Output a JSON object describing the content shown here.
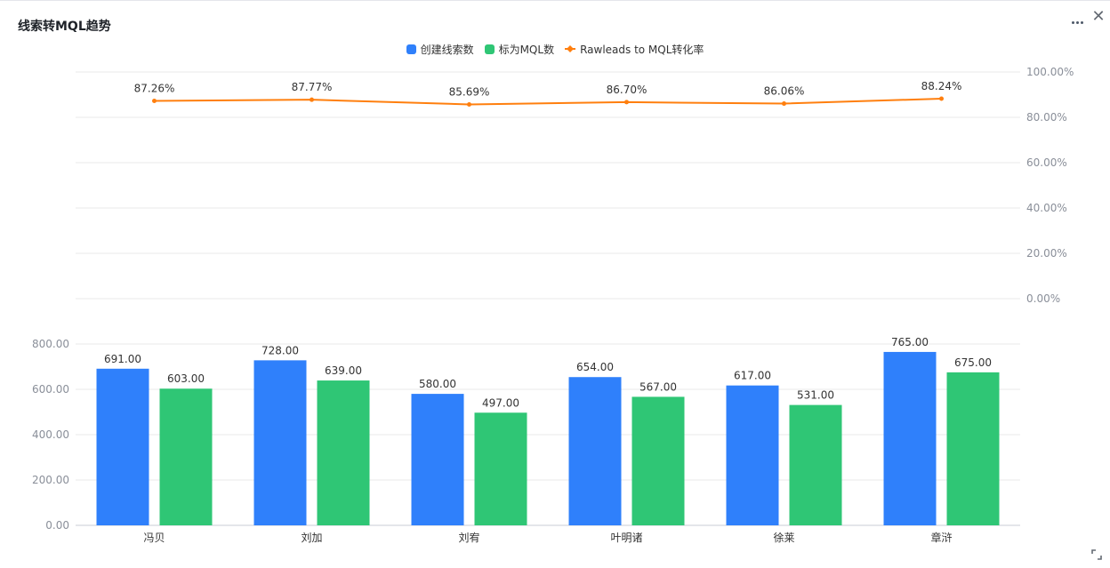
{
  "header": {
    "title": "线索转MQL趋势",
    "menu_icon": "more-dots-icon",
    "close_icon": "close-icon",
    "expand_icon": "expand-corner-icon"
  },
  "legend": [
    {
      "label": "创建线索数",
      "color": "#2f80fb",
      "shape": "square"
    },
    {
      "label": "标为MQL数",
      "color": "#2fc675",
      "shape": "square"
    },
    {
      "label": "Rawleads to MQL转化率",
      "color": "#ff7f0e",
      "shape": "line"
    }
  ],
  "chart_data": {
    "type": "bar",
    "categories": [
      "冯贝",
      "刘加",
      "刘宥",
      "叶明诸",
      "徐莱",
      "章浒"
    ],
    "series": [
      {
        "name": "创建线索数",
        "type": "bar",
        "color": "#2f80fb",
        "values": [
          691.0,
          728.0,
          580.0,
          654.0,
          617.0,
          765.0
        ],
        "labels": [
          "691.00",
          "728.00",
          "580.00",
          "654.00",
          "617.00",
          "765.00"
        ]
      },
      {
        "name": "标为MQL数",
        "type": "bar",
        "color": "#2fc675",
        "values": [
          603.0,
          639.0,
          497.0,
          567.0,
          531.0,
          675.0
        ],
        "labels": [
          "603.00",
          "639.00",
          "497.00",
          "567.00",
          "531.00",
          "675.00"
        ]
      },
      {
        "name": "Rawleads to MQL转化率",
        "type": "line",
        "color": "#ff7f0e",
        "values": [
          87.26,
          87.77,
          85.69,
          86.7,
          86.06,
          88.24
        ],
        "labels": [
          "87.26%",
          "87.77%",
          "85.69%",
          "86.70%",
          "86.06%",
          "88.24%"
        ]
      }
    ],
    "bar_axis": {
      "ylim": [
        0,
        800
      ],
      "ticks": [
        "0.00",
        "200.00",
        "400.00",
        "600.00",
        "800.00"
      ]
    },
    "line_axis": {
      "ylim": [
        0,
        100
      ],
      "ticks": [
        "0.00%",
        "20.00%",
        "40.00%",
        "60.00%",
        "80.00%",
        "100.00%"
      ]
    },
    "grid": true,
    "legend_position": "top-center"
  }
}
